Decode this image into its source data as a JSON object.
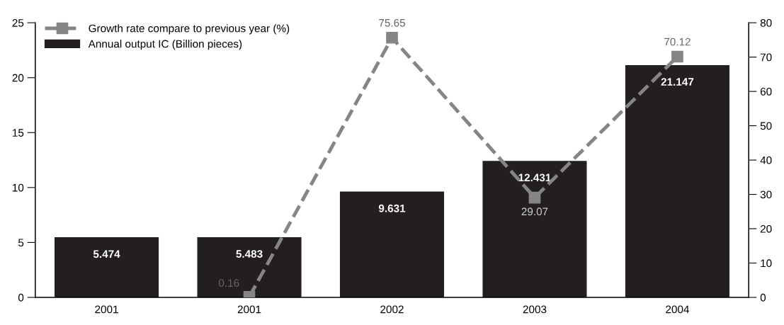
{
  "chart_data": {
    "type": "bar",
    "categories": [
      "2001",
      "2001",
      "2002",
      "2003",
      "2004"
    ],
    "series": [
      {
        "name": "Annual output IC (Billion pieces)",
        "color": "#231f20",
        "values": [
          5.474,
          5.483,
          9.631,
          12.431,
          21.147
        ]
      },
      {
        "name": "Growth rate compare to previous year (%)",
        "type": "line",
        "axis": "y2",
        "color": "#858585",
        "values": [
          null,
          0.16,
          75.65,
          29.07,
          70.12
        ]
      }
    ],
    "ylim": [
      0,
      25
    ],
    "yticks": [
      0,
      5,
      10,
      15,
      20,
      25
    ],
    "y2lim": [
      0,
      80
    ],
    "y2ticks": [
      0,
      10,
      20,
      30,
      40,
      50,
      60,
      70,
      80
    ],
    "data_labels": true,
    "legend": "top left",
    "grid": false,
    "marker": "square",
    "line_style": "dashed"
  }
}
